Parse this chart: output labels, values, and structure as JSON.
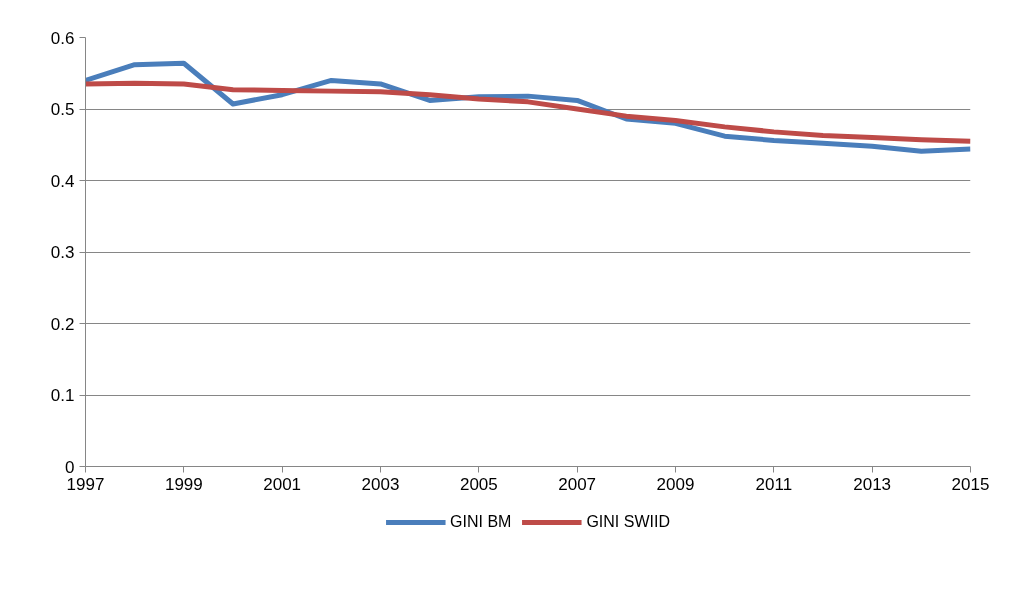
{
  "chart_data": {
    "type": "line",
    "x": [
      1997,
      1998,
      1999,
      2000,
      2001,
      2002,
      2003,
      2004,
      2005,
      2006,
      2007,
      2008,
      2009,
      2010,
      2011,
      2012,
      2013,
      2014,
      2015
    ],
    "series": [
      {
        "name": "GINI BM",
        "color": "#4a7ebb",
        "values": [
          0.54,
          0.562,
          0.564,
          0.507,
          0.52,
          0.54,
          0.535,
          0.512,
          0.517,
          0.518,
          0.512,
          0.486,
          0.48,
          0.462,
          0.456,
          0.452,
          0.448,
          0.441,
          0.444
        ]
      },
      {
        "name": "GINI SWIID",
        "color": "#be4b48",
        "values": [
          0.535,
          0.536,
          0.535,
          0.527,
          0.526,
          0.525,
          0.524,
          0.52,
          0.514,
          0.51,
          0.5,
          0.49,
          0.484,
          0.475,
          0.468,
          0.463,
          0.46,
          0.457,
          0.455
        ]
      }
    ],
    "xlim": [
      1997,
      2015
    ],
    "xticks": [
      1997,
      1999,
      2001,
      2003,
      2005,
      2007,
      2009,
      2011,
      2013,
      2015
    ],
    "ylim": [
      0,
      0.6
    ],
    "yticks": [
      0,
      {
        "value": 0.1,
        "label": "0.1"
      },
      {
        "value": 0.2,
        "label": "0.2"
      },
      {
        "value": 0.3,
        "label": "0.3"
      },
      {
        "value": 0.4,
        "label": "0.4"
      },
      {
        "value": 0.5,
        "label": "0.5"
      },
      {
        "value": 0.6,
        "label": "0.6"
      }
    ],
    "grid": "y",
    "legend": "bottom",
    "marker": "none",
    "line_style": "solid"
  }
}
